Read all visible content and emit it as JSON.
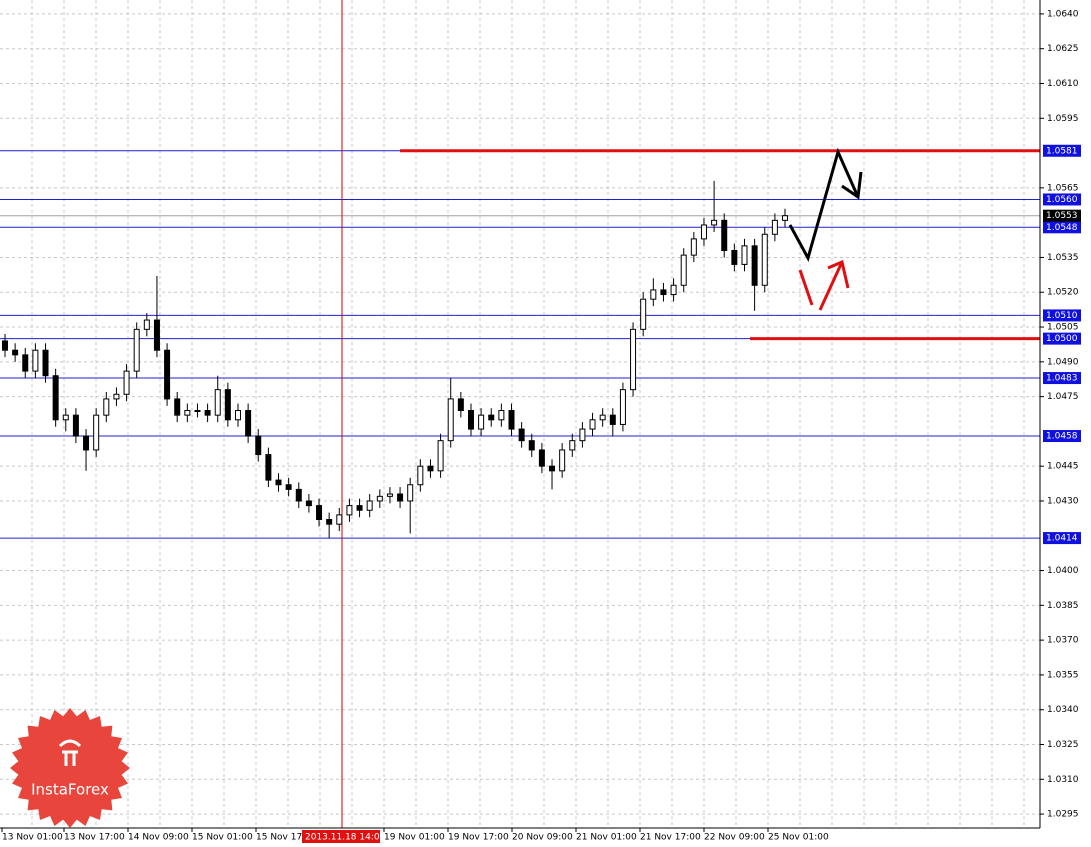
{
  "chart_data": {
    "type": "candlestick",
    "open": [
      1.0499,
      1.0495,
      1.0493,
      1.0486,
      1.0495,
      1.0484,
      1.0465,
      1.0467,
      1.0458,
      1.0452,
      1.0467,
      1.0474,
      1.0476,
      1.0486,
      1.0504,
      1.0508,
      1.0495,
      1.0474,
      1.0467,
      1.0469,
      1.0469,
      1.0467,
      1.0478,
      1.0465,
      1.0469,
      1.0458,
      1.045,
      1.0439,
      1.0437,
      1.0435,
      1.043,
      1.0428,
      1.0422,
      1.042,
      1.0424,
      1.0428,
      1.0426,
      1.043,
      1.0432,
      1.0433,
      1.043,
      1.0437,
      1.0445,
      1.0443,
      1.0456,
      1.0474,
      1.0469,
      1.0461,
      1.0467,
      1.0465,
      1.0469,
      1.0461,
      1.0456,
      1.0452,
      1.0445,
      1.0443,
      1.0452,
      1.0456,
      1.0461,
      1.0465,
      1.0467,
      1.0463,
      1.0478,
      1.0504,
      1.0517,
      1.0521,
      1.0519,
      1.0523,
      1.0536,
      1.0543,
      1.0549,
      1.0551,
      1.0538,
      1.0532,
      1.054,
      1.0523,
      1.0545,
      1.0551
    ],
    "high": [
      1.0502,
      1.0498,
      1.0496,
      1.0498,
      1.0498,
      1.0487,
      1.047,
      1.047,
      1.0461,
      1.047,
      1.0477,
      1.0479,
      1.0489,
      1.0507,
      1.0511,
      1.0527,
      1.0498,
      1.0477,
      1.0472,
      1.0472,
      1.0472,
      1.0484,
      1.0481,
      1.0472,
      1.0472,
      1.0461,
      1.0453,
      1.0442,
      1.044,
      1.0438,
      1.0433,
      1.0431,
      1.0425,
      1.0427,
      1.0431,
      1.0431,
      1.0433,
      1.0435,
      1.0436,
      1.0436,
      1.044,
      1.0448,
      1.0448,
      1.0459,
      1.0483,
      1.0477,
      1.0472,
      1.047,
      1.047,
      1.0472,
      1.0472,
      1.0464,
      1.0459,
      1.0455,
      1.0448,
      1.0455,
      1.0459,
      1.0464,
      1.0468,
      1.047,
      1.047,
      1.0481,
      1.0507,
      1.052,
      1.0526,
      1.0524,
      1.0526,
      1.0539,
      1.0546,
      1.0552,
      1.0568,
      1.0554,
      1.0541,
      1.0543,
      1.0543,
      1.0548,
      1.0554,
      1.0556
    ],
    "low": [
      1.0492,
      1.049,
      1.0483,
      1.0483,
      1.0481,
      1.0462,
      1.046,
      1.0455,
      1.0443,
      1.0449,
      1.0464,
      1.0471,
      1.0473,
      1.0483,
      1.0501,
      1.0492,
      1.0471,
      1.0464,
      1.0464,
      1.0466,
      1.0464,
      1.0464,
      1.0462,
      1.0462,
      1.0455,
      1.0447,
      1.0436,
      1.0434,
      1.0432,
      1.0427,
      1.0425,
      1.0419,
      1.0414,
      1.0417,
      1.0421,
      1.0423,
      1.0423,
      1.0427,
      1.0429,
      1.0427,
      1.0416,
      1.0434,
      1.044,
      1.044,
      1.0453,
      1.0466,
      1.0458,
      1.0458,
      1.0462,
      1.0462,
      1.0458,
      1.0453,
      1.0449,
      1.0442,
      1.0435,
      1.044,
      1.0449,
      1.0453,
      1.0458,
      1.0462,
      1.0458,
      1.046,
      1.0475,
      1.0501,
      1.0514,
      1.0516,
      1.0516,
      1.052,
      1.0533,
      1.054,
      1.0546,
      1.0535,
      1.0529,
      1.0529,
      1.0512,
      1.052,
      1.0542,
      1.0548
    ],
    "close": [
      1.0495,
      1.0493,
      1.0486,
      1.0495,
      1.0484,
      1.0465,
      1.0467,
      1.0458,
      1.0452,
      1.0467,
      1.0474,
      1.0476,
      1.0486,
      1.0504,
      1.0508,
      1.0495,
      1.0474,
      1.0467,
      1.0469,
      1.0469,
      1.0467,
      1.0478,
      1.0465,
      1.0469,
      1.0458,
      1.045,
      1.0439,
      1.0437,
      1.0435,
      1.043,
      1.0428,
      1.0422,
      1.042,
      1.0424,
      1.0428,
      1.0426,
      1.043,
      1.0432,
      1.0433,
      1.043,
      1.0437,
      1.0445,
      1.0443,
      1.0456,
      1.0474,
      1.0469,
      1.0461,
      1.0467,
      1.0465,
      1.0469,
      1.0461,
      1.0456,
      1.0452,
      1.0445,
      1.0443,
      1.0452,
      1.0456,
      1.0461,
      1.0465,
      1.0467,
      1.0463,
      1.0478,
      1.0504,
      1.0517,
      1.0521,
      1.0519,
      1.0523,
      1.0536,
      1.0543,
      1.0549,
      1.0551,
      1.0538,
      1.0532,
      1.054,
      1.0523,
      1.0545,
      1.0551,
      1.0553
    ],
    "ylim": [
      1.0289,
      1.0646
    ],
    "yticks": [
      {
        "value": 1.064,
        "label": "1.0640"
      },
      1.0625,
      {
        "value": 1.061,
        "label": "1.0610"
      },
      1.0595,
      1.0565,
      1.0535,
      {
        "value": 1.052,
        "label": "1.0520"
      },
      1.0505,
      {
        "value": 1.049,
        "label": "1.0490"
      },
      1.0475,
      1.0445,
      {
        "value": 1.043,
        "label": "1.0430"
      },
      {
        "value": 1.04,
        "label": "1.0400"
      },
      1.0385,
      {
        "value": 1.037,
        "label": "1.0370"
      },
      1.0355,
      {
        "value": 1.034,
        "label": "1.0340"
      },
      1.0325,
      {
        "value": 1.031,
        "label": "1.0310"
      },
      1.0295
    ],
    "levels": [
      1.0581,
      {
        "value": 1.056,
        "label": "1.0560"
      },
      1.0548,
      {
        "value": 1.051,
        "label": "1.0510"
      },
      {
        "value": 1.05,
        "label": "1.0500"
      },
      1.0483,
      1.0458,
      1.0414
    ],
    "key_levels": [
      0,
      4
    ],
    "current_price": 1.0553,
    "x_labels": [
      "13 Nov 01:00",
      "13 Nov 17:00",
      "14 Nov 09:00",
      "15 Nov 01:00",
      "15 Nov 17",
      "19 Nov 01:00",
      "19 Nov 17:00",
      "20 Nov 09:00",
      "21 Nov 01:00",
      "21 Nov 17:00",
      "22 Nov 09:00",
      "25 Nov 01:00"
    ],
    "cursor_label": "2013.11.18 14:00",
    "logo_text": "InstaForex",
    "grid": true
  }
}
